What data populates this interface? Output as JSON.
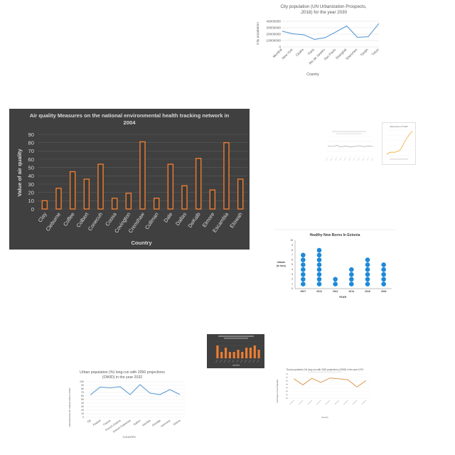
{
  "colors": {
    "dark_bg": "#404040",
    "orange": "#ed7d31",
    "blue": "#5b9bd5",
    "dot_blue": "#1f8ad8",
    "grid": "#d9d9d9"
  },
  "chart_data": [
    {
      "id": "city",
      "type": "line",
      "title": "City population (UN Urbanization Prospects, 2018) for the year 2030",
      "title_lines": [
        "City population (UN Urbanization Prospects,",
        ".2018) for the year 2030"
      ],
      "xlabel": "Country",
      "ylabel": "City population",
      "categories": [
        "Mumbai",
        "New York",
        "Osaka",
        "Paris",
        "Rio de Janeiro",
        "Sao Paulo",
        "Shanghai",
        "Shenzhen",
        "Tianjin",
        "Tokyo"
      ],
      "series": [
        {
          "values": [
            24500000,
            20500000,
            19000000,
            11800000,
            14500000,
            23500000,
            32800000,
            15000000,
            16000000,
            36600000
          ]
        }
      ],
      "yticks": [
        "40000000",
        "30000000",
        "20000000",
        "10000000",
        "0"
      ],
      "ylim": [
        0,
        40000000
      ],
      "grid": true
    },
    {
      "id": "air",
      "type": "bar",
      "title": "Air quality Measures on the national environmental health tracking network in 2004",
      "title_lines": [
        "Air quality Measures on the national environmental health tracking network in",
        "2004"
      ],
      "xlabel": "Country",
      "ylabel": "Value of air quality",
      "categories": [
        "Clay",
        "Cleburne",
        "Coffee",
        "Colbert",
        "Conecuh",
        "Coosa",
        "Covington",
        "Crenshaw",
        "Cullman",
        "Dale",
        "Dallas",
        "DeKalb",
        "Elmore",
        "Escambia",
        "Etowah"
      ],
      "values": [
        10,
        25,
        45,
        36,
        54,
        13,
        19,
        81,
        13,
        54,
        28,
        61,
        23,
        80,
        36
      ],
      "yticks": [
        "90",
        "80",
        "70",
        "60",
        "50",
        "40",
        "30",
        "20",
        "10",
        "0"
      ],
      "ylim": [
        0,
        90
      ],
      "grid": true
    },
    {
      "id": "mini_line",
      "type": "line",
      "categories": [
        "",
        "",
        "",
        "",
        "",
        "",
        "",
        "",
        "",
        "",
        ""
      ],
      "series": [
        {
          "values": [
            52,
            50,
            55,
            48,
            53,
            47,
            51,
            54,
            49,
            52,
            50
          ]
        }
      ],
      "ylim": [
        0,
        100
      ]
    },
    {
      "id": "stock",
      "type": "line",
      "title": "Stock price of TCAP",
      "series": [
        {
          "values": [
            5,
            12,
            14,
            13,
            16,
            20,
            35,
            55,
            70,
            85,
            95
          ]
        }
      ],
      "ylim": [
        0,
        100
      ]
    },
    {
      "id": "newborns",
      "type": "scatter",
      "title": "Healthy New Borns In Estonia",
      "xlabel": "YEAR",
      "ylabel": "Infants (in lacs)",
      "categories": [
        "2007",
        "2010",
        "2012",
        "2014",
        "2016",
        "2018"
      ],
      "values": [
        7,
        8,
        2,
        4,
        6,
        5
      ],
      "yticks": [
        "10",
        "9",
        "8",
        "7",
        "6",
        "5",
        "4",
        "3",
        "2",
        "1",
        "0"
      ],
      "ylim": [
        0,
        10
      ]
    },
    {
      "id": "dark_bar",
      "type": "bar",
      "values": [
        6,
        3,
        5,
        3,
        3,
        4,
        3,
        5,
        5,
        6,
        4
      ],
      "ylim": [
        0,
        8
      ]
    },
    {
      "id": "urban",
      "type": "line",
      "title": "Urban population (%) long-run with 2050 projections (OWID) in the year 2032",
      "title_lines": [
        "Urban population (%) long-run with 2050 projections",
        "(OWID) in the year 2032"
      ],
      "xlabel": "COUNTRY",
      "ylabel": "PERCENTAGE OF URBAN POPULATION",
      "categories": [
        "Fiji",
        "Finland",
        "France",
        "French Guiana",
        "French Polynesia",
        "Gabon",
        "Gambia",
        "Georgia",
        "Germany",
        "Ghana"
      ],
      "series": [
        {
          "values": [
            63,
            85,
            83,
            86,
            64,
            92,
            68,
            64,
            78,
            64
          ]
        }
      ],
      "yticks": [
        "100",
        "90",
        "80",
        "70",
        "60",
        "50",
        "40",
        "30",
        "20",
        "10",
        "0"
      ],
      "ylim": [
        0,
        100
      ],
      "grid": true
    },
    {
      "id": "rural",
      "type": "line",
      "title": "Rural population (%) long-run with 2050 projections (OWID) in the year 1976",
      "xlabel": "Country",
      "ylabel": "Percentage of Rural Population",
      "categories": [
        "",
        "",
        "",
        "",
        "",
        "",
        "",
        "",
        ""
      ],
      "series": [
        {
          "values": [
            80,
            55,
            82,
            65,
            83,
            80,
            76,
            46,
            72
          ]
        }
      ],
      "ylim": [
        0,
        100
      ]
    }
  ]
}
